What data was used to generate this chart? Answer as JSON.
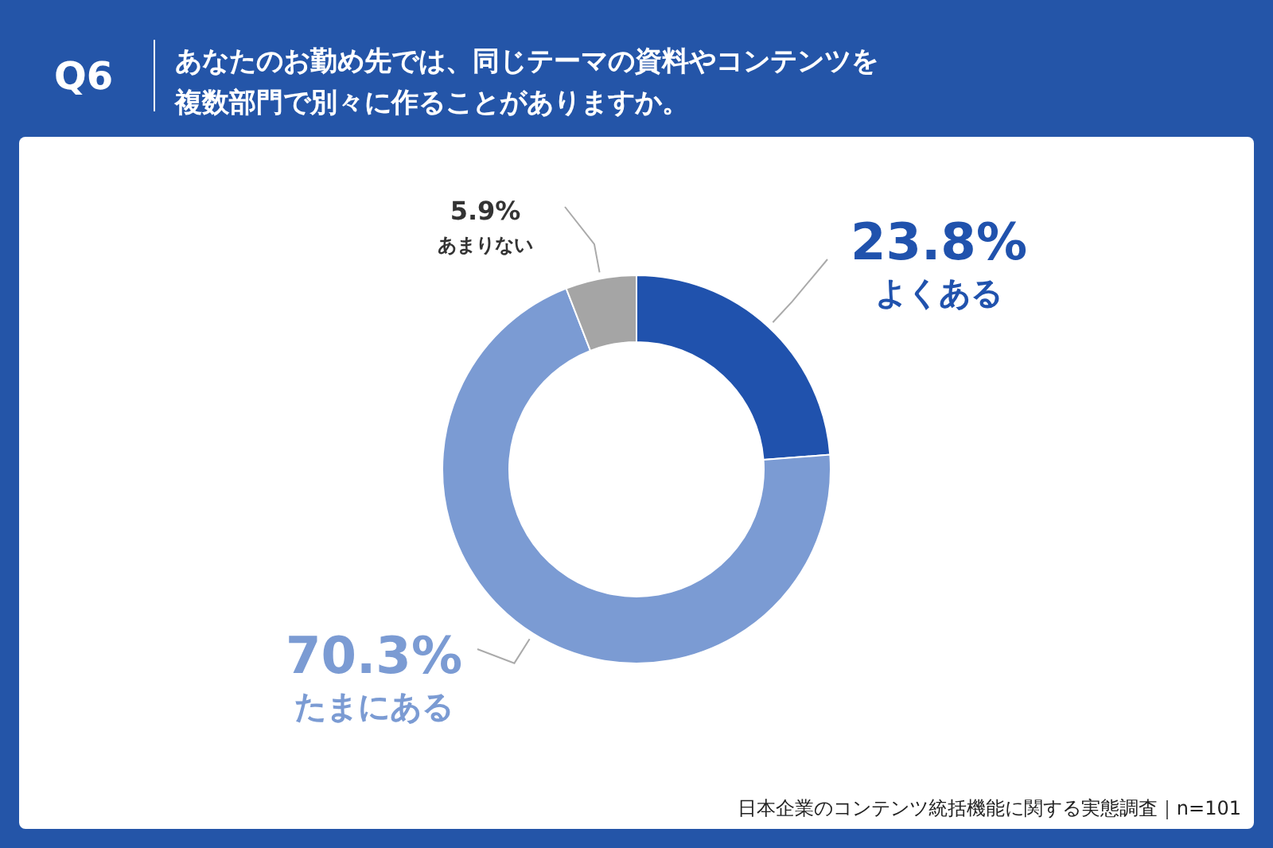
{
  "chart_data": {
    "type": "donut",
    "title": "Q6",
    "subtitle": "あなたのお勤め先では、同じテーマの資料やコンテンツを複数部門で別々に作ることがありますか。",
    "categories": [
      "よくある",
      "たまにある",
      "あまりない"
    ],
    "values": [
      23.8,
      70.3,
      5.9
    ],
    "colors": [
      "#2052ad",
      "#7b9bd3",
      "#a5a5a5"
    ],
    "value_labels": [
      "23.8%",
      "70.3%",
      "5.9%"
    ],
    "annotations": [
      "日本企業のコンテンツ統括機能に関する実態調査｜n=101"
    ]
  }
}
